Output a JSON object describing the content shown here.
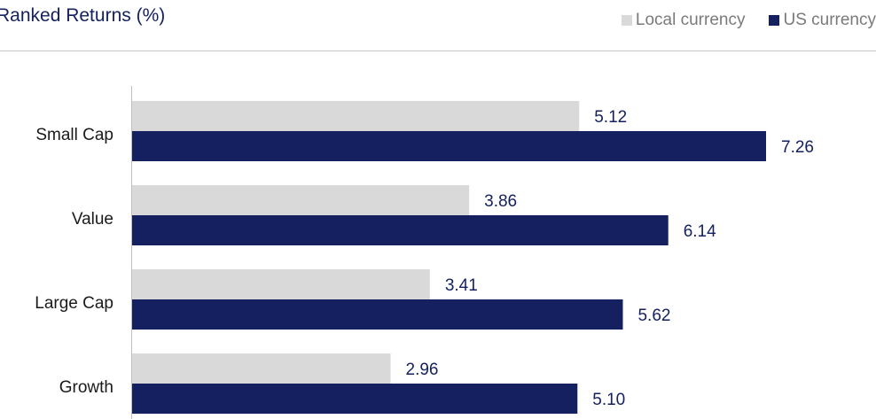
{
  "chart_data": {
    "type": "bar",
    "orientation": "horizontal",
    "title": "Ranked Returns (%)",
    "categories": [
      "Small Cap",
      "Value",
      "Large Cap",
      "Growth"
    ],
    "series": [
      {
        "name": "Local currency",
        "color": "#d9d9d9",
        "values": [
          5.12,
          3.86,
          3.41,
          2.96
        ],
        "labels": [
          "5.12",
          "3.86",
          "3.41",
          "2.96"
        ]
      },
      {
        "name": "US currency",
        "color": "#14205f",
        "values": [
          7.26,
          6.14,
          5.62,
          5.1
        ],
        "labels": [
          "7.26",
          "6.14",
          "5.62",
          "5.10"
        ]
      }
    ],
    "xlim": [
      0,
      7.26
    ],
    "legend_position": "top-right",
    "grid": false,
    "data_labels": true
  }
}
